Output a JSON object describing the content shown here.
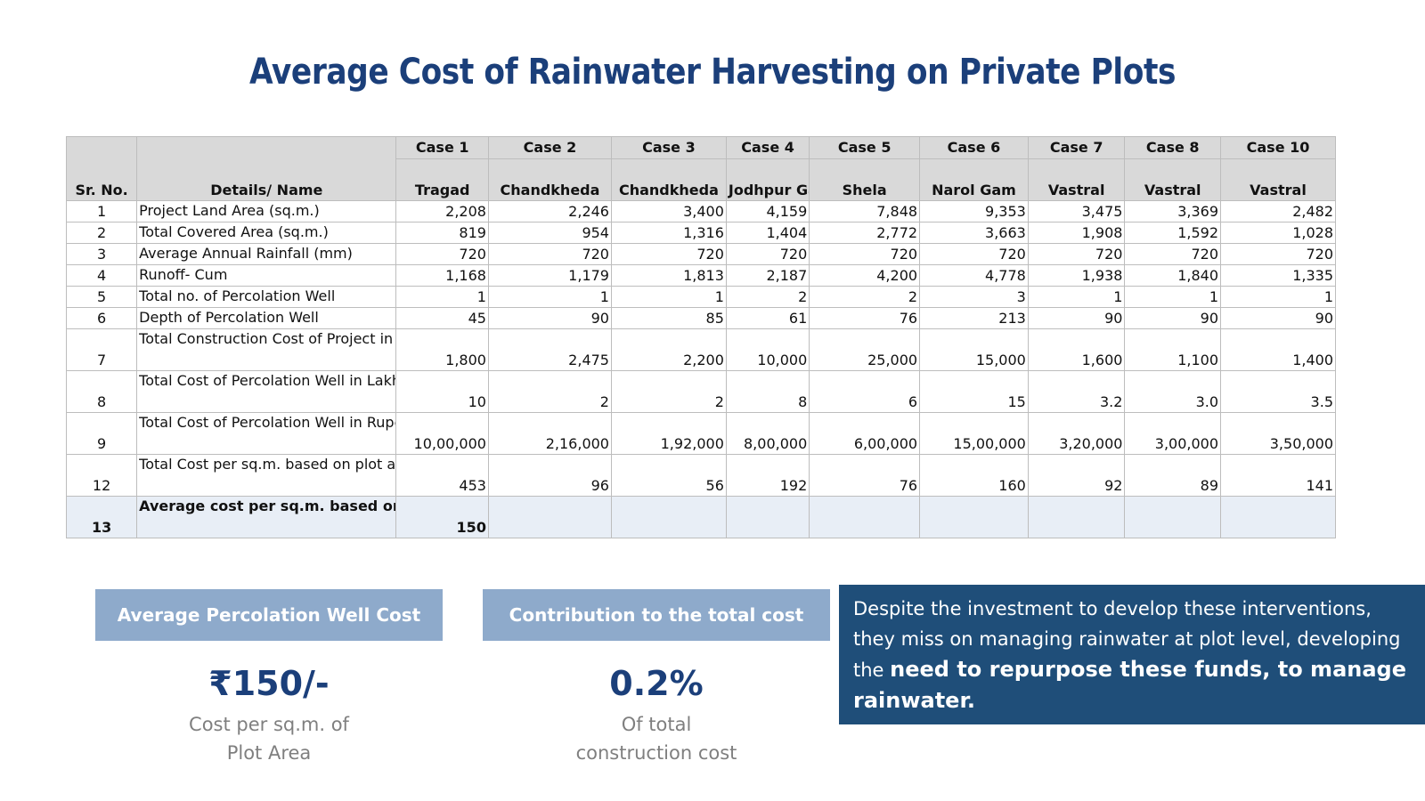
{
  "title": "Average Cost of Rainwater Harvesting on Private Plots",
  "table": {
    "sr_header": "Sr. No.",
    "details_header": "Details/ Name",
    "cases": [
      "Case 1",
      "Case 2",
      "Case 3",
      "Case 4",
      "Case 5",
      "Case 6",
      "Case 7",
      "Case 8",
      "Case 10"
    ],
    "locations": [
      "Tragad",
      "Chandkheda",
      "Chandkheda",
      "Jodhpur Gam",
      "Shela",
      "Narol Gam",
      "Vastral",
      "Vastral",
      "Vastral"
    ],
    "rows": [
      {
        "sr": "1",
        "detail": "Project Land Area (sq.m.)",
        "values": [
          "2,208",
          "2,246",
          "3,400",
          "4,159",
          "7,848",
          "9,353",
          "3,475",
          "3,369",
          "2,482"
        ]
      },
      {
        "sr": "2",
        "detail": "Total Covered Area (sq.m.)",
        "values": [
          "819",
          "954",
          "1,316",
          "1,404",
          "2,772",
          "3,663",
          "1,908",
          "1,592",
          "1,028"
        ]
      },
      {
        "sr": "3",
        "detail": "Average Annual Rainfall (mm)",
        "values": [
          "720",
          "720",
          "720",
          "720",
          "720",
          "720",
          "720",
          "720",
          "720"
        ]
      },
      {
        "sr": "4",
        "detail": "Runoff- Cum",
        "values": [
          "1,168",
          "1,179",
          "1,813",
          "2,187",
          "4,200",
          "4,778",
          "1,938",
          "1,840",
          "1,335"
        ]
      },
      {
        "sr": "5",
        "detail": "Total no. of Percolation Well",
        "values": [
          "1",
          "1",
          "1",
          "2",
          "2",
          "3",
          "1",
          "1",
          "1"
        ]
      },
      {
        "sr": "6",
        "detail": "Depth of Percolation Well",
        "values": [
          "45",
          "90",
          "85",
          "61",
          "76",
          "213",
          "90",
          "90",
          "90"
        ]
      },
      {
        "sr": "7",
        "detail": "Total Construction Cost of Project in Lakhs.approx.",
        "values": [
          "1,800",
          "2,475",
          "2,200",
          "10,000",
          "25,000",
          "15,000",
          "1,600",
          "1,100",
          "1,400"
        ]
      },
      {
        "sr": "8",
        "detail": "Total Cost of Percolation Well in Lakh. Approx.",
        "values": [
          "10",
          "2",
          "2",
          "8",
          "6",
          "15",
          "3.2",
          "3.0",
          "3.5"
        ]
      },
      {
        "sr": "9",
        "detail": "Total Cost of Percolation Well in Rupees. Approx.",
        "values": [
          "10,00,000",
          "2,16,000",
          "1,92,000",
          "8,00,000",
          "6,00,000",
          "15,00,000",
          "3,20,000",
          "3,00,000",
          "3,50,000"
        ]
      },
      {
        "sr": "12",
        "detail": "Total Cost per sq.m. based on plot area in Rupees",
        "values": [
          "453",
          "96",
          "56",
          "192",
          "76",
          "160",
          "92",
          "89",
          "141"
        ]
      }
    ],
    "average_row": {
      "sr": "13",
      "detail": "Average cost per sq.m. based on plot area in Rupees",
      "value": "150"
    }
  },
  "stats": [
    {
      "label": "Average Percolation Well Cost",
      "value": "₹150/-",
      "caption": "Cost per sq.m. of\nPlot Area"
    },
    {
      "label": "Contribution to the total cost",
      "value": "0.2%",
      "caption": "Of total\nconstruction cost"
    }
  ],
  "note": {
    "text": "Despite the investment to develop these interventions, they miss on managing rainwater at plot level, developing the ",
    "bold": "need to repurpose these funds, to manage rainwater."
  },
  "colors": {
    "title": "#1b3f7a",
    "header_bg": "#d9d9d9",
    "stat_box": "#8eaacb",
    "note_bg": "#1f4e79",
    "avg_row_bg": "#e8eef6"
  }
}
